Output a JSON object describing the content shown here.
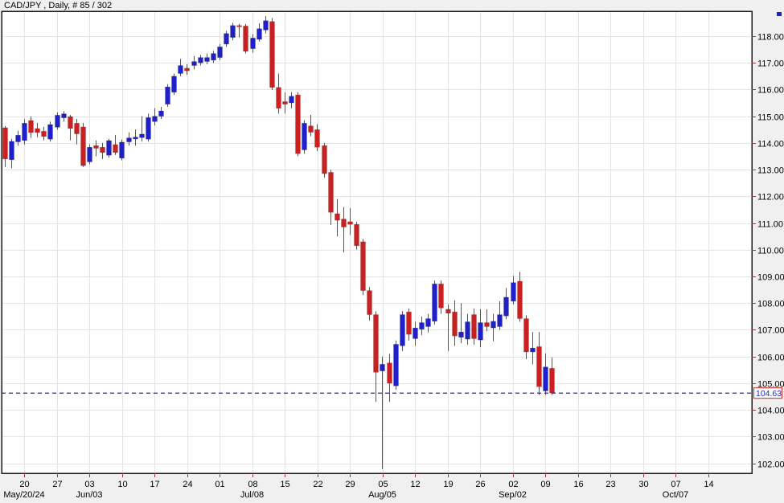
{
  "title": "CAD/JPY , Daily, # 85 / 302",
  "y_axis": {
    "tick_labels": [
      "118.00",
      "117.00",
      "116.00",
      "115.00",
      "114.00",
      "113.00",
      "112.00",
      "111.00",
      "110.00",
      "109.00",
      "108.00",
      "107.00",
      "106.00",
      "105.00",
      "104.00",
      "103.00",
      "102.00"
    ]
  },
  "x_axis": {
    "week_tick_labels": [
      "20",
      "27",
      "03",
      "10",
      "17",
      "24",
      "01",
      "08",
      "15",
      "22",
      "29",
      "05",
      "12",
      "19",
      "26",
      "02",
      "09",
      "16",
      "23",
      "30",
      "07",
      "14"
    ],
    "month_labels": [
      {
        "text": "May/20/24",
        "tick_index": 0
      },
      {
        "text": "Jun/03",
        "tick_index": 2
      },
      {
        "text": "Jul/08",
        "tick_index": 7
      },
      {
        "text": "Aug/05",
        "tick_index": 11
      },
      {
        "text": "Sep/02",
        "tick_index": 15
      },
      {
        "text": "Oct/07",
        "tick_index": 20
      }
    ]
  },
  "price_marker": {
    "label": "104.63",
    "value": 104.63
  },
  "colors": {
    "up_candle": "#2020c8",
    "down_candle": "#cc2020",
    "wick": "#555555",
    "grid": "#e4e4e4",
    "plot_border": "#1a1a1a",
    "background": "#f0f0f0",
    "plot_background": "#ffffff",
    "dashed_line": "#2222cc",
    "axis_tick": "#b03333",
    "marker_border": "#cc2222",
    "marker_text": "#2222cc",
    "text": "#000000"
  },
  "chart_data": {
    "type": "candlestick",
    "symbol": "CAD/JPY",
    "timeframe": "Daily",
    "bar_counter": "# 85 / 302",
    "title": "CAD/JPY , Daily, # 85 / 302",
    "grid": true,
    "y_visible_range": [
      101.6,
      118.9
    ],
    "y_tick_step": 1.0,
    "last_close": 104.63,
    "columns": [
      "date",
      "open",
      "high",
      "low",
      "close"
    ],
    "candles": [
      [
        "May 15",
        114.57,
        114.63,
        113.1,
        113.4
      ],
      [
        "May 16",
        113.37,
        114.15,
        113.05,
        114.06
      ],
      [
        "May 17",
        114.04,
        114.45,
        113.89,
        114.29
      ],
      [
        "May 20",
        114.09,
        114.89,
        113.94,
        114.74
      ],
      [
        "May 21",
        114.84,
        114.99,
        114.19,
        114.39
      ],
      [
        "May 22",
        114.54,
        114.75,
        114.2,
        114.39
      ],
      [
        "May 23",
        114.44,
        114.6,
        114.1,
        114.24
      ],
      [
        "May 24",
        114.14,
        114.8,
        114.05,
        114.69
      ],
      [
        "May 27",
        114.59,
        115.14,
        114.5,
        115.04
      ],
      [
        "May 28",
        114.94,
        115.19,
        114.8,
        115.09
      ],
      [
        "May 29",
        114.99,
        115.05,
        114.1,
        114.54
      ],
      [
        "May 30",
        114.74,
        114.9,
        113.95,
        114.34
      ],
      [
        "May 31",
        114.6,
        114.75,
        113.1,
        113.15
      ],
      [
        "Jun 03",
        113.29,
        113.95,
        113.2,
        113.84
      ],
      [
        "Jun 04",
        113.9,
        114.1,
        113.5,
        113.8
      ],
      [
        "Jun 05",
        113.84,
        114.0,
        113.4,
        113.64
      ],
      [
        "Jun 06",
        113.54,
        114.15,
        113.45,
        114.09
      ],
      [
        "Jun 07",
        113.94,
        114.3,
        113.55,
        113.64
      ],
      [
        "Jun 10",
        113.43,
        114.13,
        113.35,
        114.03
      ],
      [
        "Jun 11",
        114.04,
        114.4,
        113.9,
        114.19
      ],
      [
        "Jun 12",
        114.15,
        114.5,
        113.9,
        114.22
      ],
      [
        "Jun 13",
        114.2,
        115.0,
        114.05,
        114.33
      ],
      [
        "Jun 14",
        114.14,
        115.1,
        114.05,
        114.95
      ],
      [
        "Jun 17",
        114.8,
        115.3,
        114.65,
        115.0
      ],
      [
        "Jun 18",
        115.0,
        115.35,
        114.9,
        115.2
      ],
      [
        "Jun 19",
        115.45,
        116.2,
        115.35,
        116.1
      ],
      [
        "Jun 20",
        115.9,
        116.6,
        115.8,
        116.5
      ],
      [
        "Jun 21",
        116.6,
        117.15,
        116.5,
        116.9
      ],
      [
        "Jun 24",
        116.8,
        116.95,
        116.55,
        116.7
      ],
      [
        "Jun 25",
        116.9,
        117.25,
        116.75,
        117.05
      ],
      [
        "Jun 26",
        117.0,
        117.3,
        116.9,
        117.2
      ],
      [
        "Jun 27",
        117.05,
        117.35,
        116.95,
        117.2
      ],
      [
        "Jun 28",
        117.1,
        117.45,
        117.0,
        117.35
      ],
      [
        "Jul 01",
        117.2,
        117.7,
        117.1,
        117.6
      ],
      [
        "Jul 02",
        117.7,
        118.2,
        117.6,
        118.1
      ],
      [
        "Jul 03",
        117.95,
        118.5,
        117.85,
        118.4
      ],
      [
        "Jul 04",
        118.4,
        118.46,
        117.95,
        118.36
      ],
      [
        "Jul 05",
        118.38,
        118.45,
        117.35,
        117.43
      ],
      [
        "Jul 08",
        117.53,
        118.08,
        117.38,
        117.93
      ],
      [
        "Jul 09",
        117.88,
        118.48,
        117.8,
        118.28
      ],
      [
        "Jul 10",
        118.23,
        118.75,
        118.1,
        118.58
      ],
      [
        "Jul 11",
        118.55,
        118.68,
        115.98,
        116.08
      ],
      [
        "Jul 12",
        116.08,
        116.6,
        115.1,
        115.3
      ],
      [
        "Jul 15",
        115.55,
        115.9,
        115.1,
        115.45
      ],
      [
        "Jul 16",
        115.5,
        115.9,
        115.3,
        115.75
      ],
      [
        "Jul 17",
        115.8,
        115.9,
        113.5,
        113.6
      ],
      [
        "Jul 18",
        113.74,
        114.85,
        113.6,
        114.74
      ],
      [
        "Jul 19",
        114.64,
        115.05,
        114.25,
        114.4
      ],
      [
        "Jul 22",
        114.5,
        114.7,
        113.7,
        113.84
      ],
      [
        "Jul 23",
        113.9,
        114.0,
        112.7,
        112.85
      ],
      [
        "Jul 24",
        112.9,
        113.0,
        110.93,
        111.4
      ],
      [
        "Jul 25",
        111.35,
        111.9,
        110.5,
        111.1
      ],
      [
        "Jul 26",
        111.15,
        111.6,
        109.9,
        110.85
      ],
      [
        "Jul 29",
        111.05,
        111.55,
        110.55,
        110.95
      ],
      [
        "Jul 30",
        110.95,
        111.05,
        110.0,
        110.15
      ],
      [
        "Jul 31",
        110.3,
        110.4,
        108.3,
        108.47
      ],
      [
        "Aug 01",
        108.47,
        108.6,
        107.35,
        107.57
      ],
      [
        "Aug 02",
        107.57,
        107.7,
        104.3,
        105.41
      ],
      [
        "Aug 05",
        105.46,
        106.0,
        101.78,
        105.71
      ],
      [
        "Aug 06",
        105.76,
        106.1,
        104.3,
        105.0
      ],
      [
        "Aug 07",
        104.9,
        106.6,
        104.75,
        106.46
      ],
      [
        "Aug 08",
        106.4,
        107.7,
        106.2,
        107.57
      ],
      [
        "Aug 09",
        107.67,
        107.8,
        106.6,
        106.83
      ],
      [
        "Aug 12",
        106.67,
        107.3,
        106.4,
        107.07
      ],
      [
        "Aug 13",
        107.02,
        107.5,
        106.8,
        107.27
      ],
      [
        "Aug 14",
        107.12,
        107.6,
        106.9,
        107.42
      ],
      [
        "Aug 15",
        107.32,
        108.85,
        107.2,
        108.72
      ],
      [
        "Aug 16",
        108.72,
        108.85,
        107.6,
        107.82
      ],
      [
        "Aug 19",
        107.77,
        107.95,
        106.21,
        107.62
      ],
      [
        "Aug 20",
        107.67,
        108.1,
        106.4,
        106.77
      ],
      [
        "Aug 21",
        106.72,
        108.0,
        106.5,
        106.92
      ],
      [
        "Aug 22",
        106.65,
        107.6,
        106.45,
        107.3
      ],
      [
        "Aug 23",
        107.57,
        107.8,
        106.45,
        106.67
      ],
      [
        "Aug 26",
        106.62,
        107.77,
        106.35,
        107.27
      ],
      [
        "Aug 27",
        107.27,
        107.77,
        106.95,
        107.12
      ],
      [
        "Aug 28",
        107.07,
        107.6,
        106.57,
        107.32
      ],
      [
        "Aug 29",
        107.12,
        108.07,
        107.0,
        107.57
      ],
      [
        "Aug 30",
        107.52,
        108.57,
        107.4,
        108.22
      ],
      [
        "Sep 02",
        108.07,
        109.02,
        107.95,
        108.77
      ],
      [
        "Sep 03",
        108.82,
        109.17,
        107.3,
        107.42
      ],
      [
        "Sep 04",
        107.42,
        107.55,
        105.9,
        106.17
      ],
      [
        "Sep 05",
        106.17,
        106.92,
        105.71,
        106.32
      ],
      [
        "Sep 06",
        106.37,
        106.92,
        104.56,
        104.87
      ],
      [
        "Sep 09",
        104.71,
        106.12,
        104.56,
        105.61
      ],
      [
        "Sep 10",
        105.56,
        105.97,
        104.56,
        104.63
      ]
    ]
  }
}
